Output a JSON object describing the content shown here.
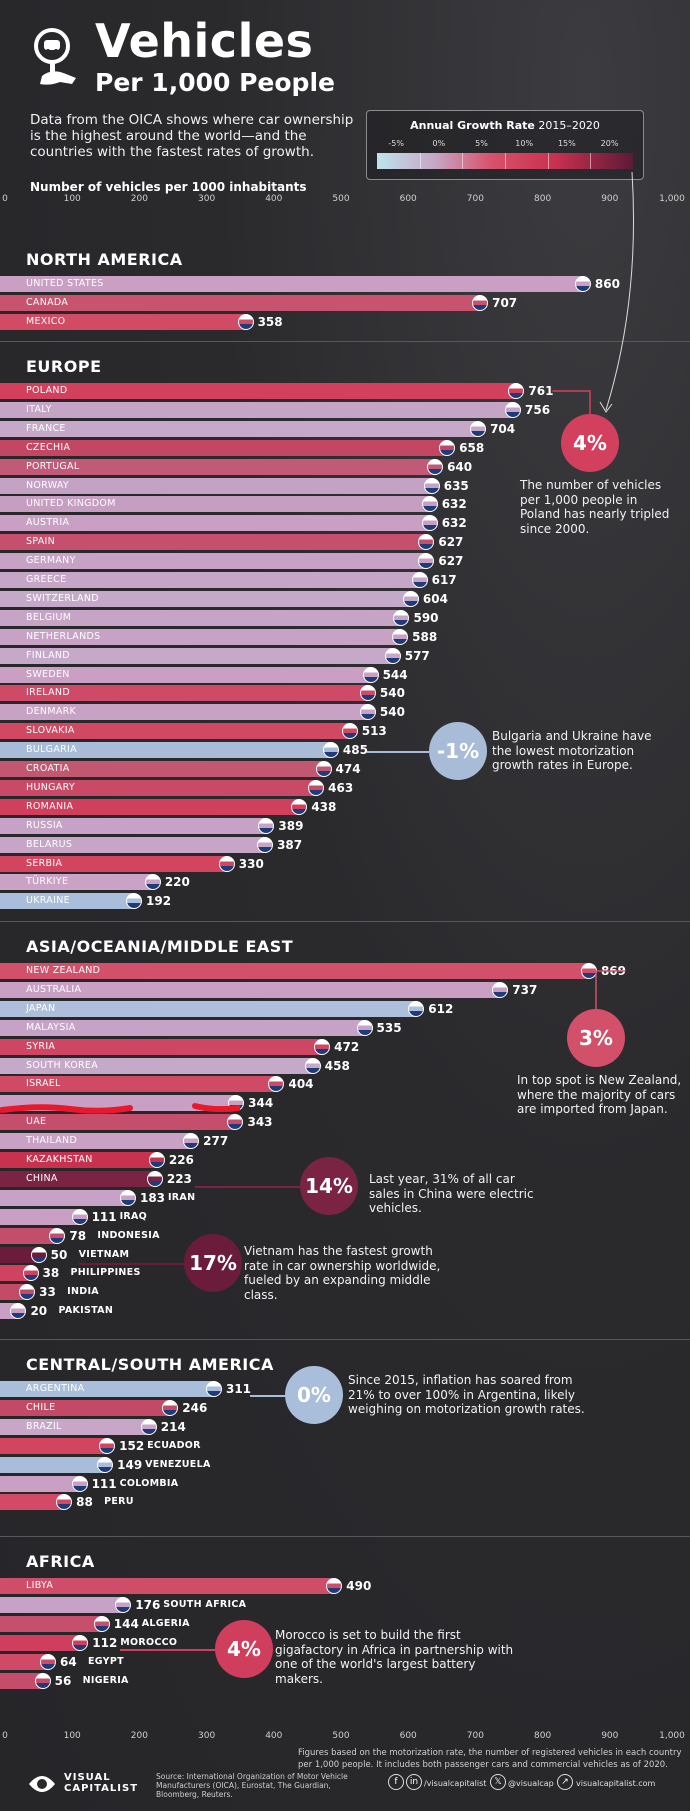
{
  "header": {
    "title": "Vehicles",
    "subtitle": "Per 1,000 People",
    "intro": "Data from the OICA shows where car ownership is the highest around the world—and the countries with the fastest rates of growth.",
    "unit_label": "Number of vehicles per 1000 inhabitants",
    "logo_icon": "key-car-icon"
  },
  "growth_legend": {
    "title_bold": "Annual Growth Rate",
    "title_rest": " 2015–2020",
    "ticks": [
      "-5%",
      "0%",
      "5%",
      "10%",
      "15%",
      "20%"
    ],
    "scale_min": -5,
    "scale_max": 20
  },
  "axis_ticks": [
    "0",
    "100",
    "200",
    "300",
    "400",
    "500",
    "600",
    "700",
    "800",
    "900",
    "1,000"
  ],
  "chart_data": {
    "type": "bar",
    "orientation": "horizontal",
    "xlim": [
      0,
      1000
    ],
    "xlabel": "Number of vehicles per 1000 inhabitants",
    "color_encoding": "Annual Growth Rate 2015–2020",
    "regions": [
      {
        "name": "NORTH AMERICA",
        "countries": [
          {
            "label": "UNITED STATES",
            "value": 860,
            "color": "#c9a0c4"
          },
          {
            "label": "CANADA",
            "value": 707,
            "color": "#c7536f"
          },
          {
            "label": "MEXICO",
            "value": 358,
            "color": "#d14b65"
          }
        ]
      },
      {
        "name": "EUROPE",
        "countries": [
          {
            "label": "POLAND",
            "value": 761,
            "color": "#d3405d"
          },
          {
            "label": "ITALY",
            "value": 756,
            "color": "#c6a4c6"
          },
          {
            "label": "FRANCE",
            "value": 704,
            "color": "#c6a8c8"
          },
          {
            "label": "CZECHIA",
            "value": 658,
            "color": "#c34663"
          },
          {
            "label": "PORTUGAL",
            "value": 640,
            "color": "#c15a76"
          },
          {
            "label": "NORWAY",
            "value": 635,
            "color": "#c3a2c4"
          },
          {
            "label": "UNITED KINGDOM",
            "value": 632,
            "color": "#c69ec2"
          },
          {
            "label": "AUSTRIA",
            "value": 632,
            "color": "#c9a0c4"
          },
          {
            "label": "SPAIN",
            "value": 627,
            "color": "#c5506d"
          },
          {
            "label": "GERMANY",
            "value": 627,
            "color": "#c6a2c5"
          },
          {
            "label": "GREECE",
            "value": 617,
            "color": "#c6a6c7"
          },
          {
            "label": "SWITZERLAND",
            "value": 604,
            "color": "#c5a9c9"
          },
          {
            "label": "BELGIUM",
            "value": 590,
            "color": "#c6a4c6"
          },
          {
            "label": "NETHERLANDS",
            "value": 588,
            "color": "#c7a2c5"
          },
          {
            "label": "FINLAND",
            "value": 577,
            "color": "#c6a9c9"
          },
          {
            "label": "SWEDEN",
            "value": 544,
            "color": "#c9a0c4"
          },
          {
            "label": "IRELAND",
            "value": 540,
            "color": "#cf4a66"
          },
          {
            "label": "DENMARK",
            "value": 540,
            "color": "#c8a2c5"
          },
          {
            "label": "SLOVAKIA",
            "value": 513,
            "color": "#d14862"
          },
          {
            "label": "BULGARIA",
            "value": 485,
            "color": "#a8bcd8"
          },
          {
            "label": "CROATIA",
            "value": 474,
            "color": "#c25772"
          },
          {
            "label": "HUNGARY",
            "value": 463,
            "color": "#c94a66"
          },
          {
            "label": "ROMANIA",
            "value": 438,
            "color": "#d03f5c"
          },
          {
            "label": "RUSSIA",
            "value": 389,
            "color": "#c6a3c6"
          },
          {
            "label": "BELARUS",
            "value": 387,
            "color": "#c6a5c7"
          },
          {
            "label": "SERBIA",
            "value": 330,
            "color": "#d3445f"
          },
          {
            "label": "TÜRKIYE",
            "value": 220,
            "color": "#c9a2c6"
          },
          {
            "label": "UKRAINE",
            "value": 192,
            "color": "#a9bedb"
          }
        ]
      },
      {
        "name": "ASIA/OCEANIA/MIDDLE EAST",
        "countries": [
          {
            "label": "NEW ZEALAND",
            "value": 869,
            "color": "#d2506a"
          },
          {
            "label": "AUSTRALIA",
            "value": 737,
            "color": "#c9a0c4"
          },
          {
            "label": "JAPAN",
            "value": 612,
            "color": "#aebfdc"
          },
          {
            "label": "MALAYSIA",
            "value": 535,
            "color": "#c6a3c6"
          },
          {
            "label": "SYRIA",
            "value": 472,
            "color": "#cf4664"
          },
          {
            "label": "SOUTH KOREA",
            "value": 458,
            "color": "#c5a9c8"
          },
          {
            "label": "ISRAEL",
            "value": 404,
            "color": "#d04a66"
          },
          {
            "label": "",
            "value": 344,
            "color": "#c9a0c4"
          },
          {
            "label": "UAE",
            "value": 343,
            "color": "#c44e6b"
          },
          {
            "label": "THAILAND",
            "value": 277,
            "color": "#c9a1c5"
          },
          {
            "label": "KAZAKHSTAN",
            "value": 226,
            "color": "#c8324f"
          },
          {
            "label": "CHINA",
            "value": 223,
            "color": "#7a2342"
          },
          {
            "label": "IRAN",
            "value": 183,
            "color": "#c6a3c6"
          },
          {
            "label": "IRAQ",
            "value": 111,
            "color": "#c9a0c4"
          },
          {
            "label": "INDONESIA",
            "value": 78,
            "color": "#c34e6b"
          },
          {
            "label": "VIETNAM",
            "value": 50,
            "color": "#6a1c3a"
          },
          {
            "label": "PHILIPPINES",
            "value": 38,
            "color": "#cf4360"
          },
          {
            "label": "INDIA",
            "value": 33,
            "color": "#c34b68"
          },
          {
            "label": "PAKISTAN",
            "value": 20,
            "color": "#c9a0c4"
          }
        ]
      },
      {
        "name": "CENTRAL/SOUTH AMERICA",
        "countries": [
          {
            "label": "ARGENTINA",
            "value": 311,
            "color": "#a9bedb"
          },
          {
            "label": "CHILE",
            "value": 246,
            "color": "#c34a67"
          },
          {
            "label": "BRAZIL",
            "value": 214,
            "color": "#c7a6c8"
          },
          {
            "label": "ECUADOR",
            "value": 152,
            "color": "#d3445f"
          },
          {
            "label": "VENEZUELA",
            "value": 149,
            "color": "#a8bdda"
          },
          {
            "label": "COLOMBIA",
            "value": 111,
            "color": "#c9a0c4"
          },
          {
            "label": "PERU",
            "value": 88,
            "color": "#d24a65"
          }
        ]
      },
      {
        "name": "AFRICA",
        "countries": [
          {
            "label": "LIBYA",
            "value": 490,
            "color": "#cf4d68"
          },
          {
            "label": "SOUTH AFRICA",
            "value": 176,
            "color": "#c6a3c6"
          },
          {
            "label": "ALGERIA",
            "value": 144,
            "color": "#c54f6c"
          },
          {
            "label": "MOROCCO",
            "value": 112,
            "color": "#cf3e5c"
          },
          {
            "label": "EGYPT",
            "value": 64,
            "color": "#d04966"
          },
          {
            "label": "NIGERIA",
            "value": 56,
            "color": "#c34d6a"
          }
        ]
      }
    ]
  },
  "callouts": [
    {
      "value": "4%",
      "text": "The number of vehicles per 1,000 people in Poland has nearly tripled since 2000.",
      "color": "#d3405d"
    },
    {
      "value": "-1%",
      "text": "Bulgaria and Ukraine have the lowest motorization growth rates in Europe.",
      "color": "#a8bcd8"
    },
    {
      "value": "3%",
      "text": "In top spot is New Zealand, where the majority of cars are imported from Japan.",
      "color": "#d2506a"
    },
    {
      "value": "14%",
      "text": "Last year, 31% of all car sales in China were electric vehicles.",
      "color": "#7a2342"
    },
    {
      "value": "17%",
      "text": "Vietnam has the fastest growth rate in car ownership worldwide, fueled by an expanding middle class.",
      "color": "#6a1c3a"
    },
    {
      "value": "0%",
      "text": "Since 2015, inflation has soared from 21% to over 100% in Argentina, likely weighing on motorization growth rates.",
      "color": "#a9bedb"
    },
    {
      "value": "4%",
      "text": "Morocco is set to build the first gigafactory in Africa in partnership with one of the world's largest battery makers.",
      "color": "#cf3e5c"
    }
  ],
  "footer": {
    "note": "Figures based on the motorization rate, the number of registered vehicles in each country per 1,000 people. It includes both passenger cars and commercial vehicles as of 2020.",
    "source": "Source: International Organization of Motor Vehicle Manufacturers (OICA), Eurostat, The Guardian, Bloomberg, Reuters.",
    "brand_line1": "VISUAL",
    "brand_line2": "CAPITALIST",
    "social_1": "/visualcapitalist",
    "social_2": "@visualcap",
    "social_3": "visualcapitalist.com",
    "icons": [
      "facebook-icon",
      "linkedin-icon",
      "x-icon",
      "link-icon"
    ]
  }
}
